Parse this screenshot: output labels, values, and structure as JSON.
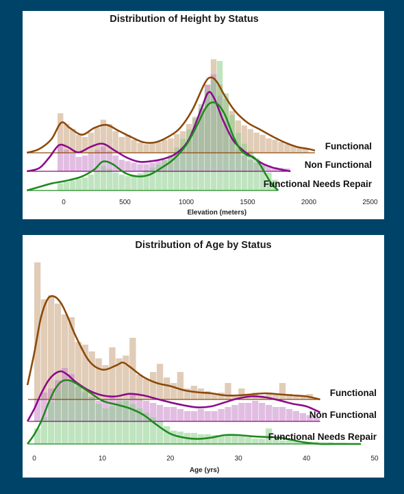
{
  "colors": {
    "page_background": "#004369",
    "panel_background": "#ffffff",
    "Functional": "#8B4A0A",
    "Non Functional": "#8B0A8B",
    "Functional Needs Repair": "#1E8A1E",
    "Functional_fill": "#C9A47E",
    "Non Functional_fill": "#C98AC9",
    "Functional Needs Repair_fill": "#8CCF8C"
  },
  "chart_data": [
    {
      "type": "area",
      "subtype": "ridgeline kde + histogram",
      "title": "Distribution of Height by Status",
      "xlabel": "Elevation (meters)",
      "ylabel": "",
      "xlim": [
        -350,
        2500
      ],
      "xticks": [
        0,
        500,
        1000,
        1500,
        2000,
        2500
      ],
      "grid": false,
      "legend": "series labels at right end of each ridge",
      "series": [
        {
          "name": "Functional",
          "x_end": 2050,
          "kde_x": [
            -300,
            -200,
            -100,
            -20,
            50,
            150,
            250,
            350,
            450,
            550,
            650,
            750,
            850,
            950,
            1050,
            1150,
            1200,
            1250,
            1320,
            1400,
            1500,
            1600,
            1700,
            1800,
            1900,
            2000,
            2050
          ],
          "kde_y": [
            0.0,
            0.05,
            0.18,
            0.4,
            0.33,
            0.24,
            0.33,
            0.37,
            0.29,
            0.21,
            0.14,
            0.14,
            0.21,
            0.33,
            0.57,
            0.92,
            1.0,
            0.94,
            0.74,
            0.55,
            0.4,
            0.31,
            0.22,
            0.14,
            0.08,
            0.05,
            0.03
          ],
          "hist_bins": [
            -50,
            0,
            50,
            100,
            150,
            200,
            250,
            300,
            350,
            400,
            450,
            500,
            550,
            600,
            650,
            700,
            750,
            800,
            850,
            900,
            950,
            1000,
            1050,
            1100,
            1150,
            1200,
            1250,
            1300,
            1350,
            1400,
            1450,
            1500,
            1550,
            1600,
            1650,
            1700,
            1750,
            1800,
            1850,
            1900,
            1950,
            2000
          ],
          "hist_values": [
            0.55,
            0.4,
            0.33,
            0.25,
            0.22,
            0.28,
            0.35,
            0.46,
            0.4,
            0.3,
            0.22,
            0.25,
            0.18,
            0.14,
            0.12,
            0.14,
            0.15,
            0.18,
            0.2,
            0.26,
            0.3,
            0.4,
            0.5,
            0.62,
            0.95,
            1.3,
            0.95,
            0.75,
            0.58,
            0.45,
            0.38,
            0.33,
            0.28,
            0.25,
            0.2,
            0.18,
            0.15,
            0.12,
            0.1,
            0.08,
            0.06
          ]
        },
        {
          "name": "Non Functional",
          "x_end": 1850,
          "kde_x": [
            -300,
            -200,
            -120,
            -40,
            30,
            120,
            220,
            320,
            420,
            520,
            620,
            720,
            820,
            920,
            1020,
            1120,
            1180,
            1230,
            1300,
            1380,
            1460,
            1540,
            1620,
            1700,
            1780,
            1850
          ],
          "kde_y": [
            0.0,
            0.04,
            0.17,
            0.33,
            0.31,
            0.24,
            0.31,
            0.35,
            0.26,
            0.17,
            0.12,
            0.13,
            0.16,
            0.23,
            0.4,
            0.78,
            1.0,
            0.92,
            0.65,
            0.4,
            0.27,
            0.18,
            0.1,
            0.05,
            0.02,
            0.0
          ],
          "hist_bins": [
            -50,
            0,
            50,
            100,
            150,
            200,
            250,
            300,
            350,
            400,
            450,
            500,
            550,
            600,
            650,
            700,
            750,
            800,
            850,
            900,
            950,
            1000,
            1050,
            1100,
            1150,
            1200,
            1250,
            1300,
            1350,
            1400,
            1450,
            1500,
            1550,
            1600,
            1650,
            1700,
            1750,
            1800
          ],
          "hist_values": [
            0.35,
            0.3,
            0.25,
            0.2,
            0.22,
            0.26,
            0.3,
            0.34,
            0.28,
            0.22,
            0.16,
            0.14,
            0.12,
            0.1,
            0.1,
            0.12,
            0.14,
            0.16,
            0.2,
            0.26,
            0.34,
            0.45,
            0.6,
            0.85,
            1.2,
            1.35,
            1.05,
            0.7,
            0.45,
            0.3,
            0.22,
            0.16,
            0.12,
            0.1,
            0.08,
            0.06,
            0.05,
            0.04
          ]
        },
        {
          "name": "Functional Needs Repair",
          "x_end": 1750,
          "kde_x": [
            -300,
            -200,
            -100,
            -20,
            50,
            150,
            250,
            320,
            400,
            500,
            600,
            700,
            800,
            900,
            1000,
            1080,
            1150,
            1200,
            1260,
            1320,
            1380,
            1440,
            1500,
            1550,
            1600,
            1650,
            1700,
            1750
          ],
          "kde_y": [
            0.0,
            0.04,
            0.08,
            0.1,
            0.12,
            0.16,
            0.24,
            0.33,
            0.3,
            0.2,
            0.16,
            0.18,
            0.26,
            0.36,
            0.52,
            0.72,
            0.92,
            1.0,
            0.98,
            0.85,
            0.63,
            0.47,
            0.4,
            0.38,
            0.3,
            0.18,
            0.07,
            0.0
          ],
          "hist_bins": [
            -50,
            0,
            50,
            100,
            150,
            200,
            250,
            300,
            350,
            400,
            450,
            500,
            550,
            600,
            650,
            700,
            750,
            800,
            850,
            900,
            950,
            1000,
            1050,
            1100,
            1150,
            1200,
            1250,
            1300,
            1350,
            1400,
            1450,
            1500,
            1550,
            1600,
            1650,
            1700
          ],
          "hist_values": [
            0.1,
            0.12,
            0.14,
            0.16,
            0.18,
            0.22,
            0.28,
            0.34,
            0.3,
            0.25,
            0.22,
            0.2,
            0.22,
            0.24,
            0.28,
            0.32,
            0.36,
            0.42,
            0.5,
            0.6,
            0.72,
            0.85,
            1.0,
            1.2,
            1.4,
            1.55,
            1.8,
            1.35,
            1.05,
            0.8,
            0.65,
            0.55,
            0.45,
            0.35,
            0.25,
            0.15
          ]
        }
      ]
    },
    {
      "type": "area",
      "subtype": "ridgeline kde + histogram",
      "title": "Distribution of Age by Status",
      "xlabel": "Age (yrs)",
      "ylabel": "",
      "xlim": [
        -1,
        50
      ],
      "xticks": [
        0,
        10,
        20,
        30,
        40,
        50
      ],
      "grid": false,
      "legend": "series labels at right end of each ridge",
      "series": [
        {
          "name": "Functional",
          "x_end": 42,
          "kde_x": [
            -1,
            0,
            1,
            2,
            3,
            4,
            5,
            6,
            8,
            10,
            12,
            13,
            14,
            16,
            18,
            20,
            22,
            24,
            26,
            28,
            30,
            32,
            34,
            36,
            38,
            40,
            42
          ],
          "kde_y": [
            0.14,
            0.45,
            0.8,
            0.98,
            1.0,
            0.93,
            0.79,
            0.63,
            0.38,
            0.29,
            0.33,
            0.36,
            0.32,
            0.22,
            0.16,
            0.13,
            0.09,
            0.07,
            0.06,
            0.04,
            0.04,
            0.05,
            0.06,
            0.05,
            0.04,
            0.03,
            0.0
          ],
          "hist_bins": [
            0,
            1,
            2,
            3,
            4,
            5,
            6,
            7,
            8,
            9,
            10,
            11,
            12,
            13,
            14,
            15,
            16,
            17,
            18,
            19,
            20,
            21,
            22,
            23,
            24,
            25,
            26,
            27,
            28,
            29,
            30,
            31,
            32,
            33,
            34,
            35,
            36,
            37,
            38,
            39,
            40,
            41
          ],
          "hist_values": [
            1.0,
            0.73,
            0.76,
            0.7,
            0.62,
            0.6,
            0.42,
            0.4,
            0.35,
            0.3,
            0.25,
            0.38,
            0.3,
            0.32,
            0.45,
            0.18,
            0.15,
            0.2,
            0.26,
            0.16,
            0.12,
            0.2,
            0.08,
            0.1,
            0.08,
            0.06,
            0.04,
            0.05,
            0.12,
            0.03,
            0.08,
            0.04,
            0.05,
            0.03,
            0.05,
            0.04,
            0.12,
            0.04,
            0.03,
            0.02,
            0.04,
            0.01
          ]
        },
        {
          "name": "Non Functional",
          "x_end": 42,
          "kde_x": [
            -1,
            0,
            1,
            2,
            3,
            4,
            5,
            6,
            8,
            10,
            12,
            14,
            16,
            18,
            20,
            22,
            24,
            26,
            28,
            30,
            32,
            34,
            36,
            38,
            40,
            42
          ],
          "kde_y": [
            0.0,
            0.25,
            0.55,
            0.8,
            0.95,
            1.0,
            0.92,
            0.8,
            0.62,
            0.52,
            0.5,
            0.55,
            0.52,
            0.45,
            0.38,
            0.32,
            0.28,
            0.3,
            0.38,
            0.46,
            0.5,
            0.48,
            0.42,
            0.35,
            0.3,
            0.18
          ],
          "hist_bins": [
            0,
            1,
            2,
            3,
            4,
            5,
            6,
            7,
            8,
            9,
            10,
            11,
            12,
            13,
            14,
            15,
            16,
            17,
            18,
            19,
            20,
            21,
            22,
            23,
            24,
            25,
            26,
            27,
            28,
            29,
            30,
            31,
            32,
            33,
            34,
            35,
            36,
            37,
            38,
            39,
            40,
            41
          ],
          "hist_values": [
            0.55,
            0.7,
            0.8,
            1.0,
            1.3,
            1.15,
            0.85,
            0.7,
            0.6,
            0.5,
            0.55,
            0.6,
            0.55,
            0.5,
            0.65,
            0.55,
            0.5,
            0.45,
            0.4,
            0.35,
            0.35,
            0.3,
            0.25,
            0.25,
            0.3,
            0.25,
            0.25,
            0.3,
            0.35,
            0.4,
            0.45,
            0.45,
            0.5,
            0.45,
            0.4,
            0.35,
            0.35,
            0.3,
            0.25,
            0.2,
            0.15,
            0.1
          ]
        },
        {
          "name": "Functional Needs Repair",
          "x_end": 48,
          "kde_x": [
            -1,
            0,
            1,
            2,
            3,
            4,
            5,
            6,
            8,
            10,
            12,
            14,
            16,
            18,
            20,
            22,
            24,
            26,
            28,
            30,
            32,
            34,
            36,
            38,
            40,
            42,
            44,
            46,
            48
          ],
          "kde_y": [
            0.0,
            0.15,
            0.35,
            0.62,
            0.85,
            0.98,
            1.0,
            0.96,
            0.82,
            0.68,
            0.62,
            0.56,
            0.46,
            0.3,
            0.16,
            0.1,
            0.08,
            0.1,
            0.14,
            0.14,
            0.12,
            0.11,
            0.1,
            0.06,
            0.02,
            0.0,
            0.0,
            0.0,
            0.0
          ],
          "hist_bins": [
            0,
            1,
            2,
            3,
            4,
            5,
            6,
            7,
            8,
            9,
            10,
            11,
            12,
            13,
            14,
            15,
            16,
            17,
            18,
            19,
            20,
            21,
            22,
            23,
            24,
            25,
            26,
            27,
            28,
            29,
            30,
            31,
            32,
            33,
            34,
            35,
            36,
            37,
            38,
            39,
            40,
            41,
            42,
            43,
            44,
            45,
            46,
            47
          ],
          "hist_values": [
            0.35,
            0.6,
            0.95,
            1.2,
            1.35,
            1.4,
            1.3,
            1.2,
            1.05,
            0.9,
            0.8,
            0.85,
            0.95,
            1.0,
            0.9,
            0.8,
            0.7,
            0.6,
            0.5,
            0.4,
            0.3,
            0.28,
            0.25,
            0.25,
            0.22,
            0.22,
            0.2,
            0.2,
            0.2,
            0.2,
            0.18,
            0.15,
            0.12,
            0.12,
            0.35,
            0.1,
            0.08,
            0.08,
            0.06,
            0.06,
            0.05,
            0.05,
            0.04,
            0.04,
            0.03,
            0.03,
            0.02,
            0.02
          ]
        }
      ]
    }
  ]
}
